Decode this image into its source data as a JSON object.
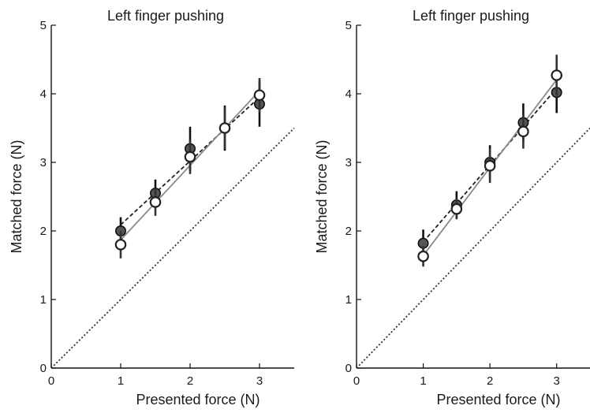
{
  "chart_data": [
    {
      "type": "scatter",
      "title": "Left finger pushing",
      "xlabel": "Presented force (N)",
      "ylabel": "Matched force (N)",
      "xlim": [
        0,
        3.5
      ],
      "ylim": [
        0,
        5
      ],
      "x_ticks": [
        "0",
        "1",
        "2",
        "3"
      ],
      "y_ticks": [
        "0",
        "1",
        "2",
        "3",
        "4",
        "5"
      ],
      "grid": false,
      "reference_line": {
        "style": "dotted",
        "x": [
          0,
          3.5
        ],
        "y": [
          0,
          3.5
        ]
      },
      "series": [
        {
          "marker": "filled-circle",
          "color": "#555555",
          "fit_line": "dashed",
          "x": [
            1,
            1.5,
            2,
            2.5,
            3
          ],
          "y": [
            2.0,
            2.55,
            3.2,
            3.5,
            3.85
          ],
          "error": [
            0.2,
            0.2,
            0.32,
            0.33,
            0.33
          ]
        },
        {
          "marker": "open-circle",
          "color": "#222222",
          "fit_line": "solid-gray",
          "x": [
            1,
            1.5,
            2,
            2.5,
            3
          ],
          "y": [
            1.8,
            2.42,
            3.08,
            3.5,
            3.98
          ],
          "error": [
            0.2,
            0.2,
            0.25,
            0.3,
            0.25
          ]
        }
      ]
    },
    {
      "type": "scatter",
      "title": "Left finger pushing",
      "xlabel": "Presented force (N)",
      "ylabel": "Matched force (N)",
      "xlim": [
        0,
        3.5
      ],
      "ylim": [
        0,
        5
      ],
      "x_ticks": [
        "0",
        "1",
        "2",
        "3"
      ],
      "y_ticks": [
        "0",
        "1",
        "2",
        "3",
        "4",
        "5"
      ],
      "grid": false,
      "reference_line": {
        "style": "dotted",
        "x": [
          0,
          3.5
        ],
        "y": [
          0,
          3.5
        ]
      },
      "series": [
        {
          "marker": "filled-circle",
          "color": "#555555",
          "fit_line": "dashed",
          "x": [
            1,
            1.5,
            2,
            2.5,
            3
          ],
          "y": [
            1.82,
            2.38,
            3.0,
            3.58,
            4.02
          ],
          "error": [
            0.2,
            0.2,
            0.25,
            0.28,
            0.3
          ]
        },
        {
          "marker": "open-circle",
          "color": "#222222",
          "fit_line": "solid-gray",
          "x": [
            1,
            1.5,
            2,
            2.5,
            3
          ],
          "y": [
            1.63,
            2.32,
            2.95,
            3.45,
            4.27
          ],
          "error": [
            0.15,
            0.15,
            0.25,
            0.25,
            0.3
          ]
        }
      ]
    }
  ]
}
